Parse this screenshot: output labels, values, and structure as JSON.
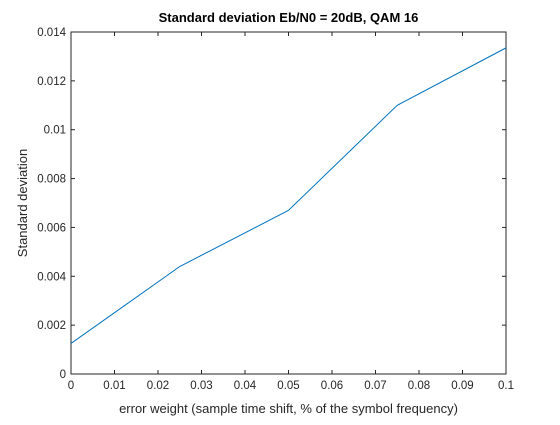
{
  "chart_data": {
    "type": "line",
    "title": "Standard deviation Eb/N0 = 20dB, QAM 16",
    "xlabel": "error weight (sample time shift, % of the symbol frequency)",
    "ylabel": "Standard deviation",
    "xlim": [
      0,
      0.1
    ],
    "ylim": [
      0,
      0.014
    ],
    "xticks": [
      0,
      0.01,
      0.02,
      0.03,
      0.04,
      0.05,
      0.06,
      0.07,
      0.08,
      0.09,
      0.1
    ],
    "yticks": [
      0,
      0.002,
      0.004,
      0.006,
      0.008,
      0.01,
      0.012,
      0.014
    ],
    "xtick_labels": [
      "0",
      "0.01",
      "0.02",
      "0.03",
      "0.04",
      "0.05",
      "0.06",
      "0.07",
      "0.08",
      "0.09",
      "0.1"
    ],
    "ytick_labels": [
      "0",
      "0.002",
      "0.004",
      "0.006",
      "0.008",
      "0.01",
      "0.012",
      "0.014"
    ],
    "grid": false,
    "series": [
      {
        "color": "#0072BD",
        "x": [
          0,
          0.025,
          0.05,
          0.075,
          0.1
        ],
        "y": [
          0.00125,
          0.0044,
          0.0067,
          0.011,
          0.01335
        ]
      }
    ]
  }
}
